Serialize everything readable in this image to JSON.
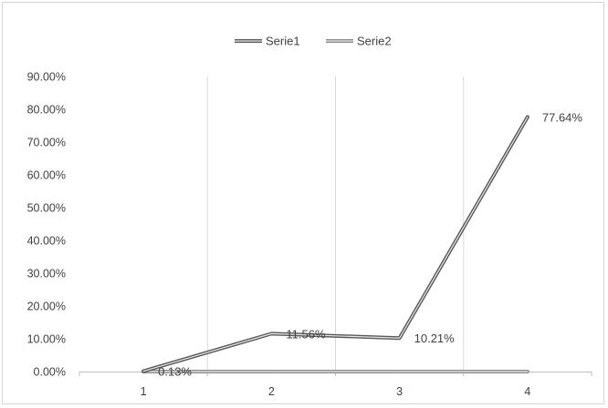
{
  "chart_data": {
    "type": "line",
    "title": "",
    "xlabel": "",
    "ylabel": "",
    "categories": [
      "1",
      "2",
      "3",
      "4"
    ],
    "ylim": [
      0,
      0.9
    ],
    "yticks": [
      0,
      0.1,
      0.2,
      0.3,
      0.4,
      0.5,
      0.6,
      0.7,
      0.8,
      0.9
    ],
    "ytick_labels": [
      "0.00%",
      "10.00%",
      "20.00%",
      "30.00%",
      "40.00%",
      "50.00%",
      "60.00%",
      "70.00%",
      "80.00%",
      "90.00%"
    ],
    "grid": "vertical",
    "legend_position": "top",
    "series": [
      {
        "name": "Serie1",
        "values": [
          0.0013,
          0.1156,
          0.1021,
          0.7764
        ],
        "data_labels": [
          "0.13%",
          "11.56%",
          "10.21%",
          "77.64%"
        ],
        "color": "#595959"
      },
      {
        "name": "Serie2",
        "values": [
          0,
          0,
          0,
          0
        ],
        "color": "#8c8c8c"
      }
    ]
  }
}
